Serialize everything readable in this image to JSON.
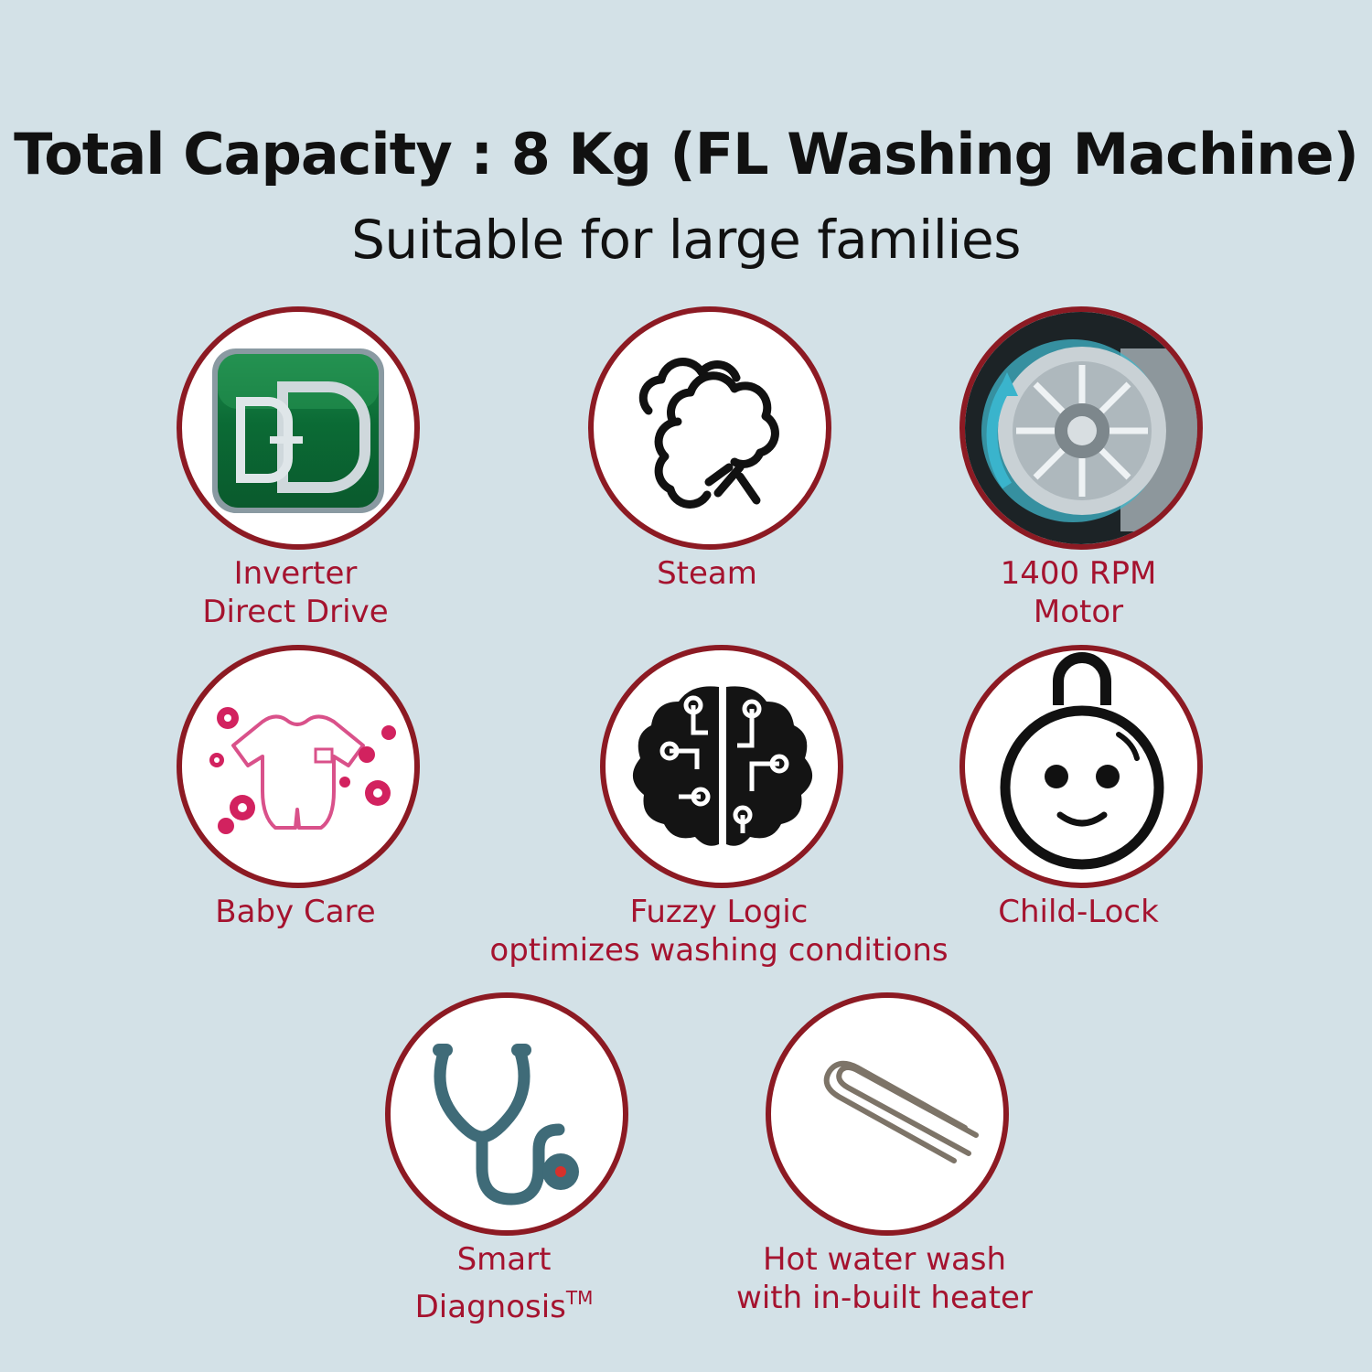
{
  "header": {
    "title": "Total Capacity : 8 Kg (FL Washing Machine)",
    "subtitle": "Suitable for large families"
  },
  "features": [
    {
      "lines": [
        "Inverter",
        "Direct Drive"
      ],
      "icon": "direct-drive-logo-icon",
      "logo_text": "DD"
    },
    {
      "lines": [
        "Steam"
      ],
      "icon": "steam-cloud-icon"
    },
    {
      "lines": [
        "1400 RPM",
        "Motor"
      ],
      "icon": "motor-drum-icon"
    },
    {
      "lines": [
        "Baby Care"
      ],
      "icon": "baby-clothes-flowers-icon"
    },
    {
      "lines": [
        "Fuzzy Logic",
        "optimizes washing conditions"
      ],
      "icon": "circuit-brain-icon"
    },
    {
      "lines": [
        "Child-Lock"
      ],
      "icon": "smiley-lock-icon"
    },
    {
      "lines": [
        "Smart",
        "Diagnosis"
      ],
      "tm": "TM",
      "icon": "stethoscope-icon"
    },
    {
      "lines": [
        "Hot water wash",
        "with in-built heater"
      ],
      "icon": "heater-element-icon"
    }
  ],
  "colors": {
    "background": "#d3e1e7",
    "ring": "#8c1a23",
    "label": "#a5132f",
    "logo_green": "#0f6e3a",
    "stethoscope": "#3f6b78"
  }
}
